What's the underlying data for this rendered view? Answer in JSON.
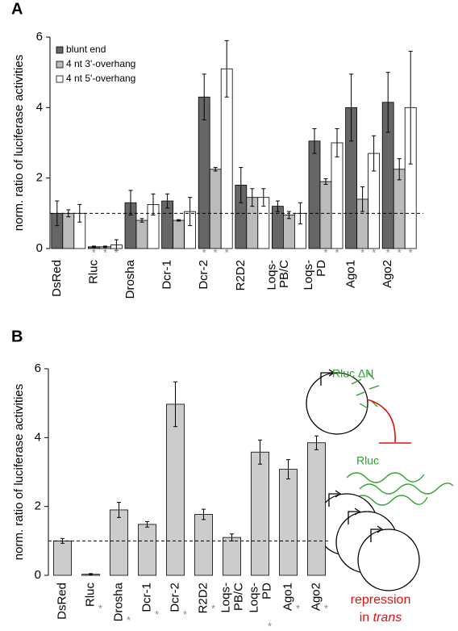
{
  "chart_data": [
    {
      "type": "bar",
      "panel": "A",
      "ylabel": "norm. ratio of luciferase activities",
      "categories": [
        "DsRed",
        "Rluc",
        "Drosha",
        "Dcr-1",
        "Dcr-2",
        "R2D2",
        "Loqs-\nPB/C",
        "Loqs-\nPD",
        "Ago1",
        "Ago2"
      ],
      "series": [
        {
          "name": "blunt end",
          "color": "#666666",
          "values": [
            1.0,
            0.05,
            1.3,
            1.35,
            4.3,
            1.8,
            1.2,
            3.05,
            4.0,
            4.15
          ],
          "errors": [
            0.35,
            0.02,
            0.35,
            0.2,
            0.65,
            0.5,
            0.15,
            0.35,
            0.95,
            0.85
          ],
          "markers": [
            null,
            "*",
            null,
            null,
            "*",
            null,
            null,
            null,
            null,
            "*"
          ]
        },
        {
          "name": "4 nt 3'-overhang",
          "color": "#bbbbbb",
          "values": [
            1.0,
            0.05,
            0.8,
            0.8,
            2.25,
            1.45,
            0.95,
            1.9,
            1.4,
            2.25
          ],
          "errors": [
            0.1,
            0.02,
            0.05,
            0.02,
            0.05,
            0.25,
            0.1,
            0.08,
            0.35,
            0.3
          ],
          "markers": [
            null,
            "*",
            null,
            null,
            "*",
            null,
            null,
            "*",
            "*",
            "*"
          ]
        },
        {
          "name": "4 nt 5'-overhang",
          "color": "#ffffff",
          "values": [
            1.0,
            0.1,
            1.25,
            1.05,
            5.1,
            1.45,
            1.0,
            3.0,
            2.7,
            4.0
          ],
          "errors": [
            0.25,
            0.15,
            0.3,
            0.4,
            0.8,
            0.25,
            0.3,
            0.4,
            0.5,
            1.6
          ],
          "markers": [
            null,
            "*",
            null,
            null,
            "*",
            null,
            null,
            "*",
            "*",
            "*"
          ]
        }
      ],
      "ylim": [
        0,
        6
      ],
      "yticks": [
        0,
        2,
        4,
        6
      ],
      "reference_line": 1
    },
    {
      "type": "bar",
      "panel": "B",
      "ylabel": "norm. ratio of luciferase activities",
      "categories": [
        "DsRed",
        "Rluc",
        "Drosha",
        "Dcr-1",
        "Dcr-2",
        "R2D2",
        "Loqs-\nPB/C",
        "Loqs-\nPD",
        "Ago1",
        "Ago2"
      ],
      "series": [
        {
          "color": "#cccccc",
          "values": [
            1.0,
            0.03,
            1.9,
            1.48,
            4.97,
            1.77,
            1.1,
            3.58,
            3.08,
            3.85
          ],
          "errors": [
            0.07,
            0.02,
            0.22,
            0.08,
            0.65,
            0.15,
            0.1,
            0.35,
            0.28,
            0.2
          ],
          "markers": [
            null,
            "*",
            "*",
            "*",
            "*",
            "*",
            null,
            "*",
            "*",
            "*"
          ]
        }
      ],
      "ylim": [
        0,
        6
      ],
      "yticks": [
        0,
        2,
        4,
        6
      ],
      "reference_line": 1
    }
  ],
  "diagram": {
    "rluc_dn": "Rluc ΔN",
    "rluc": "Rluc",
    "repression": "repression",
    "in": "in",
    "trans": "trans"
  }
}
